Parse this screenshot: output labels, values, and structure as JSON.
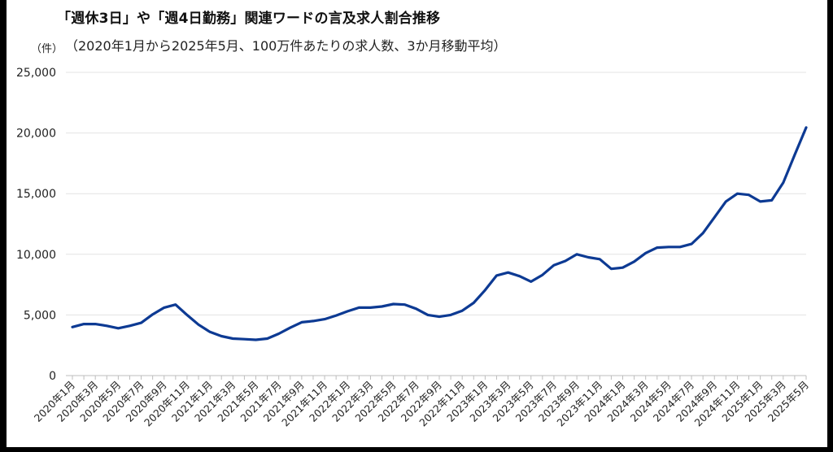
{
  "chart_data": {
    "type": "line",
    "title": "「週休3日」や「週4日勤務」関連ワードの言及求人割合推移",
    "subtitle": "（2020年1月から2025年5月、100万件あたりの求人数、3か月移動平均）",
    "ylabel": "（件）",
    "ylim": [
      0,
      25000
    ],
    "yticks": [
      "0",
      "5,000",
      "10,000",
      "15,000",
      "20,000",
      "25,000"
    ],
    "grid": true,
    "colors": {
      "line": "#0d3a93",
      "grid": "#e3e3e3",
      "axis": "#bdbdbd"
    },
    "x": [
      "2020年1月",
      "2020年2月",
      "2020年3月",
      "2020年4月",
      "2020年5月",
      "2020年6月",
      "2020年7月",
      "2020年8月",
      "2020年9月",
      "2020年10月",
      "2020年11月",
      "2020年12月",
      "2021年1月",
      "2021年2月",
      "2021年3月",
      "2021年4月",
      "2021年5月",
      "2021年6月",
      "2021年7月",
      "2021年8月",
      "2021年9月",
      "2021年10月",
      "2021年11月",
      "2021年12月",
      "2022年1月",
      "2022年2月",
      "2022年3月",
      "2022年4月",
      "2022年5月",
      "2022年6月",
      "2022年7月",
      "2022年8月",
      "2022年9月",
      "2022年10月",
      "2022年11月",
      "2022年12月",
      "2023年1月",
      "2023年2月",
      "2023年3月",
      "2023年4月",
      "2023年5月",
      "2023年6月",
      "2023年7月",
      "2023年8月",
      "2023年9月",
      "2023年10月",
      "2023年11月",
      "2023年12月",
      "2024年1月",
      "2024年2月",
      "2024年3月",
      "2024年4月",
      "2024年5月",
      "2024年6月",
      "2024年7月",
      "2024年8月",
      "2024年9月",
      "2024年10月",
      "2024年11月",
      "2024年12月",
      "2025年1月",
      "2025年2月",
      "2025年3月",
      "2025年4月",
      "2025年5月"
    ],
    "xtick_labels": [
      "2020年1月",
      "2020年3月",
      "2020年5月",
      "2020年7月",
      "2020年9月",
      "2020年11月",
      "2021年1月",
      "2021年3月",
      "2021年5月",
      "2021年7月",
      "2021年9月",
      "2021年11月",
      "2022年1月",
      "2022年3月",
      "2022年5月",
      "2022年7月",
      "2022年9月",
      "2022年11月",
      "2023年1月",
      "2023年3月",
      "2023年5月",
      "2023年7月",
      "2023年9月",
      "2023年11月",
      "2024年1月",
      "2024年3月",
      "2024年5月",
      "2024年7月",
      "2024年9月",
      "2024年11月",
      "2025年1月",
      "2025年3月",
      "2025年5月"
    ],
    "series": [
      {
        "values": [
          4000,
          4250,
          4250,
          4100,
          3900,
          4100,
          4350,
          5050,
          5600,
          5850,
          5000,
          4200,
          3600,
          3250,
          3050,
          3000,
          2950,
          3050,
          3450,
          3950,
          4400,
          4500,
          4650,
          4950,
          5300,
          5600,
          5600,
          5700,
          5900,
          5850,
          5500,
          5000,
          4850,
          5000,
          5350,
          6000,
          7050,
          8250,
          8500,
          8200,
          7750,
          8300,
          9100,
          9450,
          10000,
          9750,
          9600,
          8800,
          8900,
          9400,
          10100,
          10550,
          10600,
          10600,
          10850,
          11750,
          13050,
          14350,
          15000,
          14900,
          14350,
          14450,
          15900,
          18200,
          20450
        ]
      }
    ]
  }
}
